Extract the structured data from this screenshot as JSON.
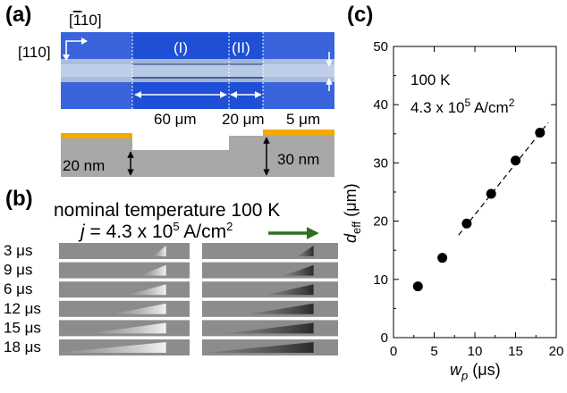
{
  "panel_a": {
    "label": "(a)",
    "dir_110_bar": "[̅110]",
    "dir_110_bar_text": "[",
    "dir_110_bar_num": "1",
    "dir_110_bar_rest": "10]",
    "dir_110": "[110]",
    "region_1": "(I)",
    "region_2": "(II)",
    "dim_60": "60 μm",
    "dim_20": "20 μm",
    "dim_5": "5 μm",
    "thick_20": "20 nm",
    "thick_30": "30 nm",
    "colors": {
      "wire": "#1f4fd6",
      "strip": "#9fb5d8",
      "electrode": "#f5a800",
      "substrate": "#a8a8a8"
    }
  },
  "panel_b": {
    "label": "(b)",
    "title": "nominal temperature 100 K",
    "current_prefix": "j",
    "current_rest": " = 4.3 x 10",
    "current_exp": "5",
    "current_unit": " A/cm",
    "current_unit_exp": "2",
    "arrow_color": "#2e6e1e",
    "rows": [
      {
        "time": "3 μs",
        "bright_len": 0.1,
        "dark_len": 0.12
      },
      {
        "time": "9 μs",
        "bright_len": 0.2,
        "dark_len": 0.22
      },
      {
        "time": "6 μs",
        "bright_len": 0.3,
        "dark_len": 0.35
      },
      {
        "time": "12 μs",
        "bright_len": 0.42,
        "dark_len": 0.48
      },
      {
        "time": "15 μs",
        "bright_len": 0.6,
        "dark_len": 0.65
      },
      {
        "time": "18 μs",
        "bright_len": 0.85,
        "dark_len": 0.8
      }
    ]
  },
  "panel_c": {
    "label": "(c)",
    "annotation_temp": "100 K",
    "annotation_current": "4.3 x 10",
    "annotation_exp": "5",
    "annotation_unit": " A/cm",
    "annotation_unit_exp": "2",
    "xlabel_main": "w",
    "xlabel_sub": "p",
    "xlabel_unit": " (μs)",
    "ylabel_main": "d",
    "ylabel_sub": "eff",
    "ylabel_unit": " (μm)"
  },
  "chart_data": {
    "type": "scatter",
    "x": [
      3,
      6,
      9,
      12,
      15,
      18
    ],
    "y": [
      8.8,
      13.7,
      19.6,
      24.7,
      30.4,
      35.2
    ],
    "fit_line": {
      "x": [
        8,
        19
      ],
      "y": [
        17.6,
        36.9
      ]
    },
    "xlim": [
      0,
      20
    ],
    "ylim": [
      0,
      50
    ],
    "xticks": [
      0,
      5,
      10,
      15,
      20
    ],
    "yticks": [
      0,
      10,
      20,
      30,
      40,
      50
    ],
    "grid": false
  }
}
